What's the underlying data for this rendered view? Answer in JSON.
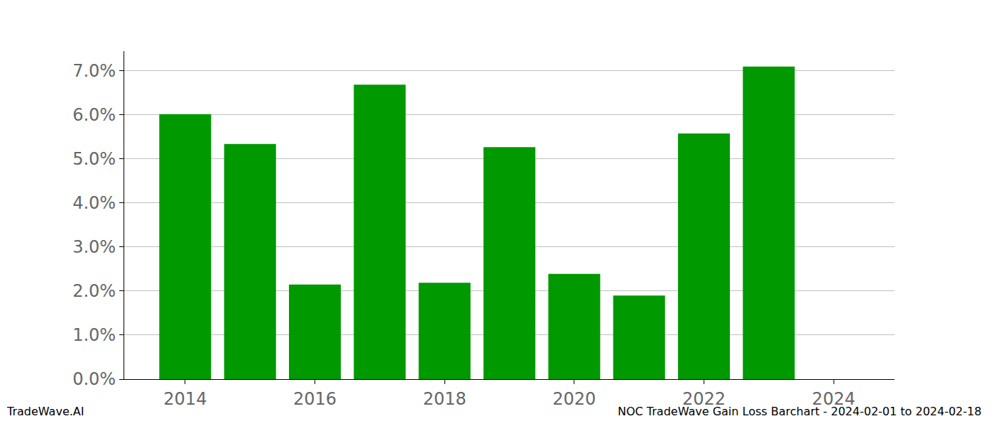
{
  "chart_data": {
    "type": "bar",
    "title": "NOC TradeWave Gain Loss Barchart - 2024-02-01 to 2024-02-18",
    "annotations": [
      "TradeWave.AI"
    ],
    "x": [
      2014,
      2015,
      2016,
      2017,
      2018,
      2019,
      2020,
      2021,
      2022,
      2023,
      2024
    ],
    "values": [
      6.02,
      5.34,
      2.15,
      6.69,
      2.19,
      5.27,
      2.39,
      1.9,
      5.58,
      7.1,
      0
    ],
    "color": "#009900",
    "xlim": [
      2013.06,
      2024.94
    ],
    "xticks": [
      2014,
      2016,
      2018,
      2020,
      2022,
      2024
    ],
    "ylim": [
      0,
      7.45
    ],
    "yticks": [
      {
        "value": 0,
        "label": "0.0%"
      },
      {
        "value": 1,
        "label": "1.0%"
      },
      {
        "value": 2,
        "label": "2.0%"
      },
      {
        "value": 3,
        "label": "3.0%"
      },
      {
        "value": 4,
        "label": "4.0%"
      },
      {
        "value": 5,
        "label": "5.0%"
      },
      {
        "value": 6,
        "label": "6.0%"
      },
      {
        "value": 7,
        "label": "7.0%"
      }
    ],
    "grid": true
  }
}
